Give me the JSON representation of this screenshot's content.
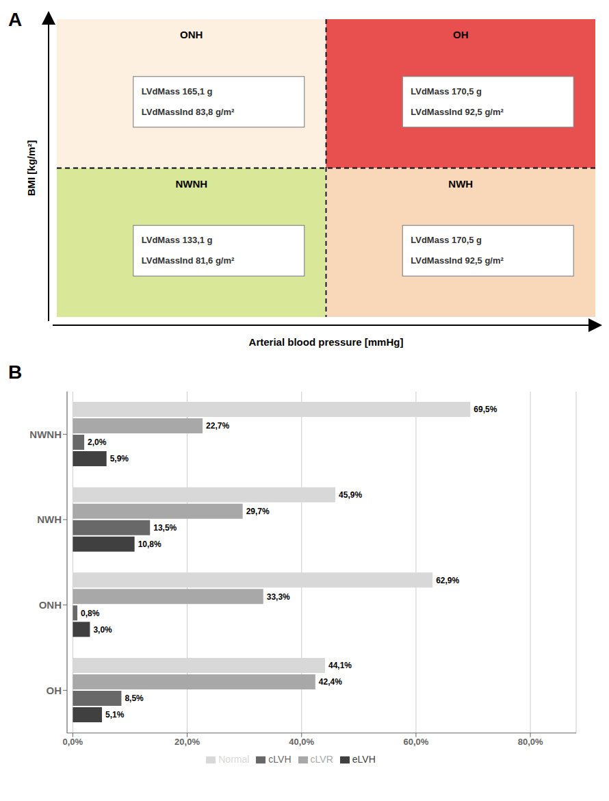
{
  "chart_data": [
    {
      "type": "diagram",
      "title": "A",
      "xlabel": "Arterial blood pressure [mmHg]",
      "ylabel": "BMI [kg/m²]",
      "categories": [
        "ONH",
        "OH",
        "NWNH",
        "NWH"
      ],
      "colors": [
        "#fdf0e0",
        "#e85050",
        "#d8e898",
        "#f8d8b8"
      ],
      "annotations": [
        [
          "LVdMass 165,1 g",
          "LVdMassInd 83,8 g/m²"
        ],
        [
          "LVdMass 170,5 g",
          "LVdMassInd 92,5 g/m²"
        ],
        [
          "LVdMass 133,1 g",
          "LVdMassInd 81,6 g/m²"
        ],
        [
          "LVdMass 170,5 g",
          "LVdMassInd 92,5 g/m²"
        ]
      ]
    },
    {
      "type": "bar",
      "title": "B",
      "orientation": "horizontal",
      "categories": [
        "NWNH",
        "NWH",
        "ONH",
        "OH"
      ],
      "series": [
        {
          "name": "Normal",
          "color": "#d8d8d8",
          "values": [
            69.5,
            45.9,
            62.9,
            44.1
          ],
          "value_labels": [
            "69,5%",
            "45,9%",
            "62,9%",
            "44,1%"
          ]
        },
        {
          "name": "cLVR",
          "color": "#a8a8a8",
          "values": [
            22.7,
            29.7,
            33.3,
            42.4
          ],
          "value_labels": [
            "22,7%",
            "29,7%",
            "33,3%",
            "42,4%"
          ]
        },
        {
          "name": "cLVH",
          "color": "#686868",
          "values": [
            2.0,
            13.5,
            0.8,
            8.5
          ],
          "value_labels": [
            "2,0%",
            "13,5%",
            "0,8%",
            "8,5%"
          ]
        },
        {
          "name": "eLVH",
          "color": "#404040",
          "values": [
            5.9,
            10.8,
            3.0,
            5.1
          ],
          "value_labels": [
            "5,9%",
            "10,8%",
            "3,0%",
            "5,1%"
          ]
        }
      ],
      "xlim": [
        -1,
        88
      ],
      "xticks": [
        {
          "value": 0,
          "label": "0,0%"
        },
        {
          "value": 20,
          "label": "20,0%"
        },
        {
          "value": 40,
          "label": "40,0%"
        },
        {
          "value": 60,
          "label": "60,0%"
        },
        {
          "value": 80,
          "label": "80,0%"
        }
      ],
      "grid": true,
      "legend": "bottom",
      "data_labels": true
    }
  ]
}
